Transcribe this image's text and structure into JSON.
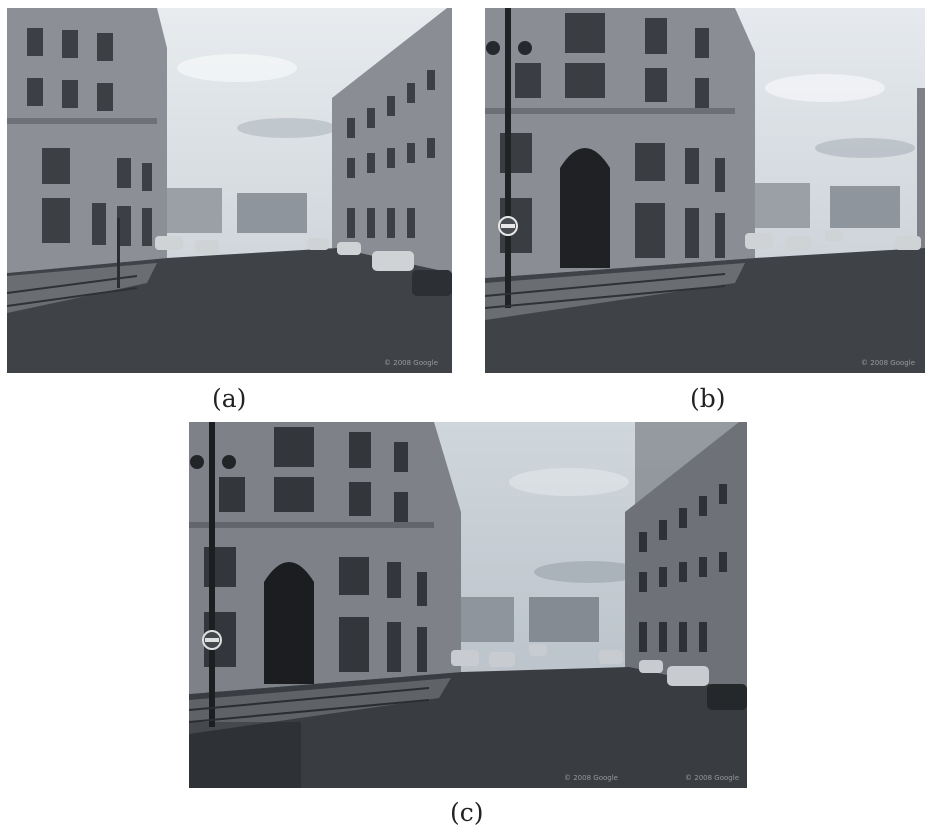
{
  "figure": {
    "panels": [
      {
        "id": "a",
        "caption": "(a)",
        "scene": "street-view-left"
      },
      {
        "id": "b",
        "caption": "(b)",
        "scene": "street-view-right"
      },
      {
        "id": "c",
        "caption": "(c)",
        "scene": "stitched-panorama"
      }
    ]
  },
  "colors": {
    "sky": "#dde3e8",
    "building": "#8e9298",
    "road": "#3f4347",
    "sidewalk": "#6a6e73"
  }
}
